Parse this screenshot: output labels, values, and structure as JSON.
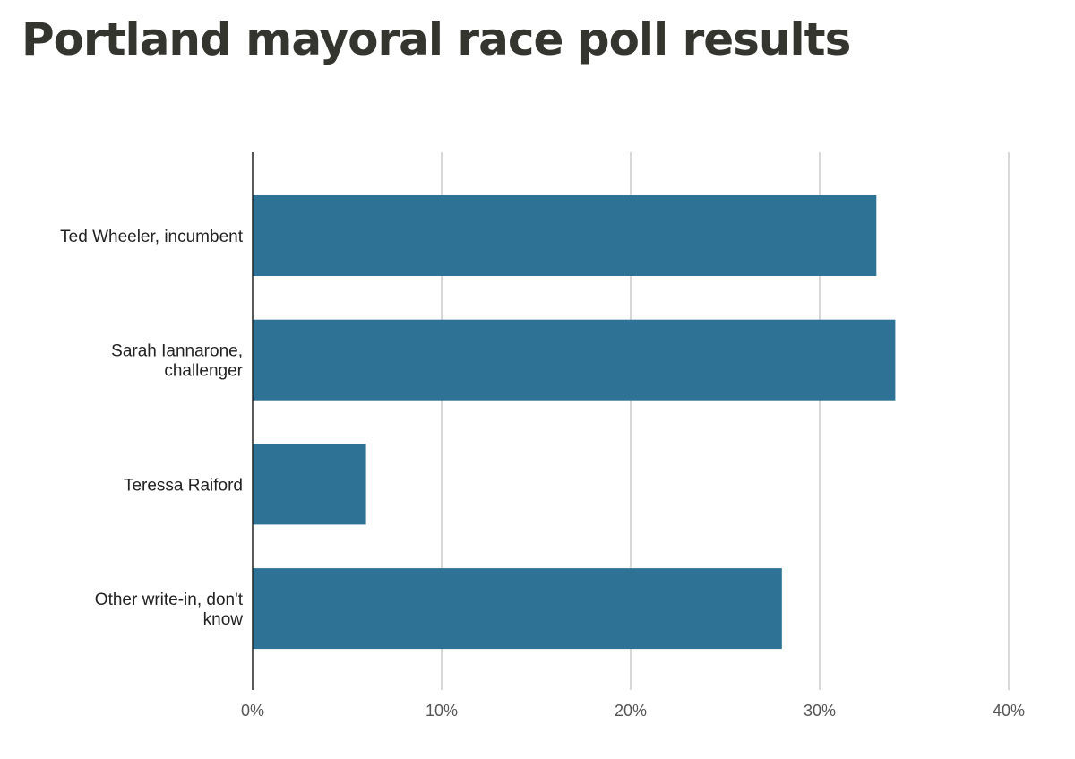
{
  "colors": {
    "bar": "#2e7395",
    "title": "#34352f",
    "label": "#222222",
    "tick": "#555555",
    "grid": "#cccccc",
    "axis": "#222222"
  },
  "chart_data": {
    "type": "bar",
    "orientation": "horizontal",
    "title": "Portland mayoral race poll results",
    "xlabel": "",
    "ylabel": "",
    "categories": [
      "Ted Wheeler, incumbent",
      "Sarah Iannarone, challenger",
      "Teressa Raiford",
      "Other write-in, don't know"
    ],
    "category_lines": [
      [
        "Ted Wheeler, incumbent"
      ],
      [
        "Sarah Iannarone,",
        "challenger"
      ],
      [
        "Teressa Raiford"
      ],
      [
        "Other write-in, don't",
        "know"
      ]
    ],
    "values": [
      33,
      34,
      6,
      28
    ],
    "xlim": [
      0,
      40
    ],
    "xticks": [
      0,
      10,
      20,
      30,
      40
    ],
    "xtick_labels": [
      "0%",
      "10%",
      "20%",
      "30%",
      "40%"
    ],
    "grid": true,
    "legend": "none"
  }
}
